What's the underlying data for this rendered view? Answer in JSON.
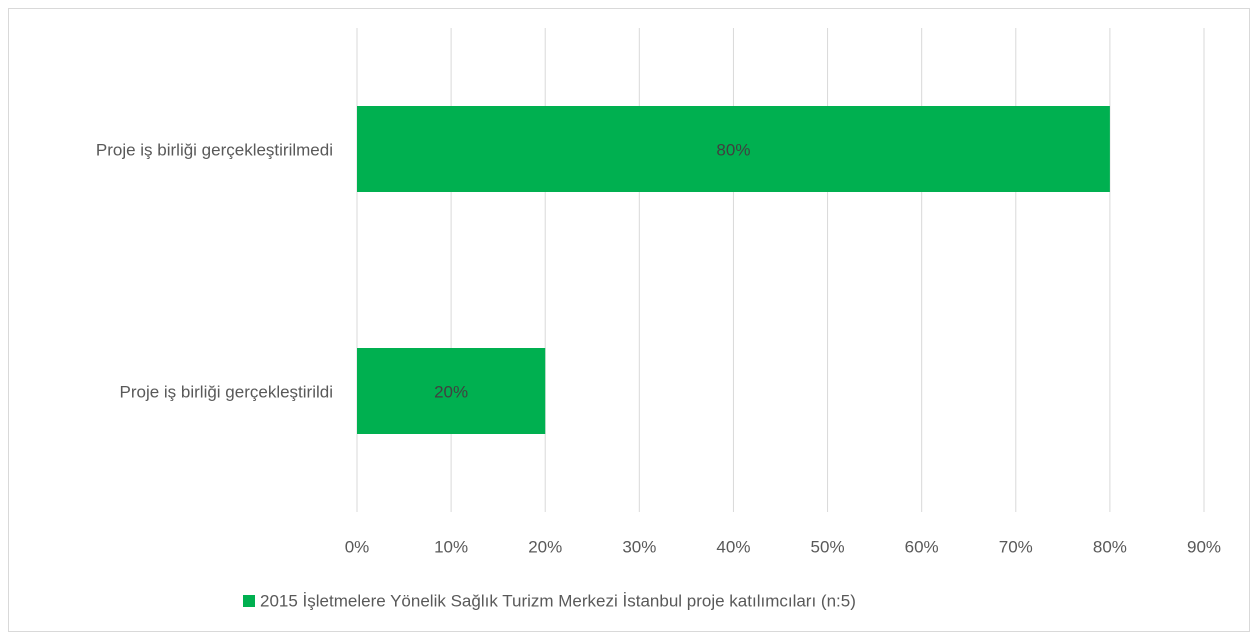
{
  "chart_data": {
    "type": "bar",
    "orientation": "horizontal",
    "categories": [
      "Proje iş birliği gerçekleştirilmedi",
      "Proje iş birliği gerçekleştirildi"
    ],
    "series": [
      {
        "name": "2015 İşletmelere Yönelik Sağlık Turizm Merkezi İstanbul proje katılımcıları (n:5)",
        "color": "#00b050",
        "values": [
          80,
          20
        ],
        "value_labels": [
          "80%",
          "20%"
        ]
      }
    ],
    "xlim": [
      0,
      90
    ],
    "xticks": [
      {
        "value": 0,
        "label": "0%"
      },
      {
        "value": 10,
        "label": "10%"
      },
      {
        "value": 20,
        "label": "20%"
      },
      {
        "value": 30,
        "label": "30%"
      },
      {
        "value": 40,
        "label": "40%"
      },
      {
        "value": 50,
        "label": "50%"
      },
      {
        "value": 60,
        "label": "60%"
      },
      {
        "value": 70,
        "label": "70%"
      },
      {
        "value": 80,
        "label": "80%"
      },
      {
        "value": 90,
        "label": "90%"
      }
    ],
    "grid": true,
    "legend": "bottom"
  }
}
